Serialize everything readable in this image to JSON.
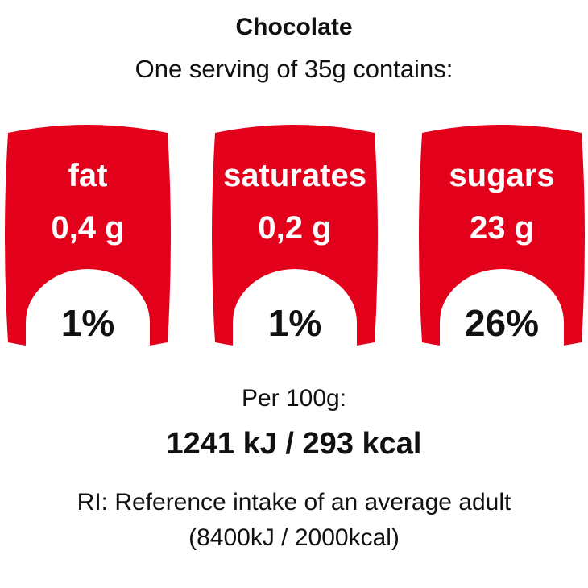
{
  "product": "Chocolate",
  "serving_text": "One serving of 35g contains:",
  "colors": {
    "badge_red": "#e2001a",
    "window_white": "#ffffff",
    "text": "#111111"
  },
  "nutrients": [
    {
      "name": "fat",
      "amount": "0,4 g",
      "percent": "1%"
    },
    {
      "name": "saturates",
      "amount": "0,2 g",
      "percent": "1%"
    },
    {
      "name": "sugars",
      "amount": "23 g",
      "percent": "26%"
    }
  ],
  "per_100g_label": "Per 100g:",
  "energy": "1241 kJ / 293 kcal",
  "ri_note": "RI: Reference intake of an average adult",
  "ri_values": "(8400kJ / 2000kcal)"
}
